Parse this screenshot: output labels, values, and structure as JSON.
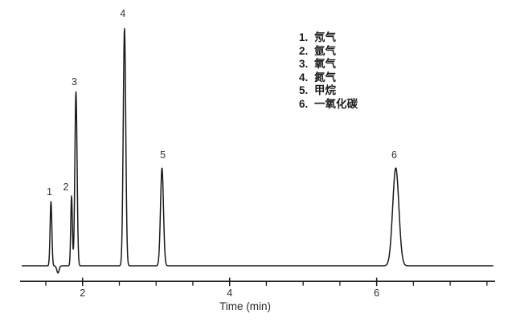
{
  "chart_data": {
    "type": "line",
    "title": "",
    "xlabel": "Time (min)",
    "ylabel": "",
    "x_range": [
      1.15,
      7.6
    ],
    "x_major_ticks": [
      2,
      4,
      6
    ],
    "x_minor_tick_interval": 0.5,
    "grid": false,
    "legend_position": "upper-right",
    "peaks": [
      {
        "num": "1",
        "label": "氖气",
        "retention_min": 1.57,
        "height_rel": 27,
        "sigma_min": 0.012
      },
      {
        "num": "2",
        "label": "氩气",
        "retention_min": 1.85,
        "height_rel": 29.4,
        "sigma_min": 0.011
      },
      {
        "num": "3",
        "label": "氧气",
        "retention_min": 1.91,
        "height_rel": 73.3,
        "sigma_min": 0.015
      },
      {
        "num": "4",
        "label": "氮气",
        "retention_min": 2.57,
        "height_rel": 100,
        "sigma_min": 0.017
      },
      {
        "num": "5",
        "label": "甲烷",
        "retention_min": 3.08,
        "height_rel": 41.2,
        "sigma_min": 0.02
      },
      {
        "num": "6",
        "label": "一氧化碳",
        "retention_min": 6.26,
        "height_rel": 41.2,
        "sigma_min": 0.042
      }
    ],
    "baseline_dip": {
      "retention_min": 1.665,
      "height_rel": -3,
      "sigma_min": 0.016
    }
  },
  "legend": {
    "items": [
      {
        "num": "1.",
        "label": "氖气"
      },
      {
        "num": "2.",
        "label": "氩气"
      },
      {
        "num": "3.",
        "label": "氧气"
      },
      {
        "num": "4.",
        "label": "氮气"
      },
      {
        "num": "5.",
        "label": "甲烷"
      },
      {
        "num": "6.",
        "label": "一氧化碳"
      }
    ]
  },
  "colors": {
    "trace": "#1a1a1a",
    "axis": "#1a1a1a",
    "text": "#2a2a2a",
    "background": "#ffffff"
  }
}
